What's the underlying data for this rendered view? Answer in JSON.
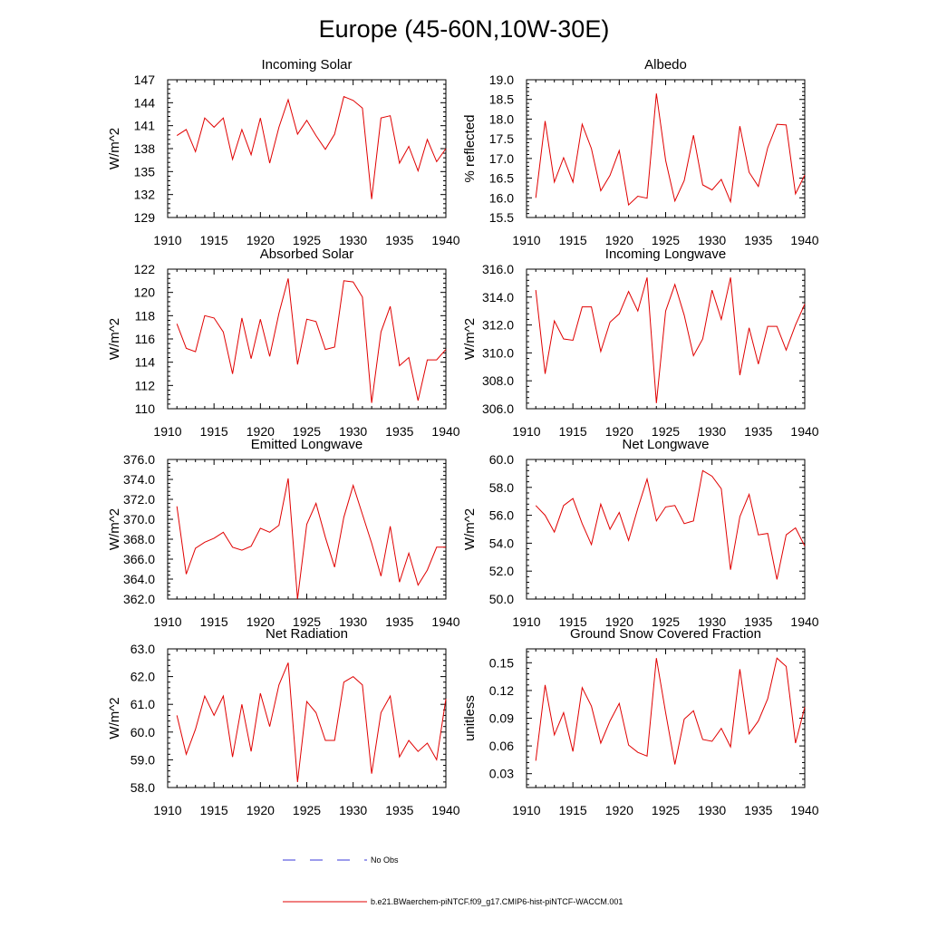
{
  "page": {
    "title": "Europe (45-60N,10W-30E)"
  },
  "legend": {
    "no_obs_label": "No Obs",
    "model_label": "b.e21.BWaerchem-piNTCF.f09_g17.CMIP6-hist-piNTCF-WACCM.001",
    "no_obs_color": "#3a3ad8",
    "model_color": "#e00000"
  },
  "chart_data": [
    {
      "type": "line",
      "title": "Incoming Solar",
      "ylabel": "W/m^2",
      "xlim": [
        1910,
        1940
      ],
      "ylim": [
        129,
        147
      ],
      "x_ticks": [
        "1910",
        "1915",
        "1920",
        "1925",
        "1930",
        "1935",
        "1940"
      ],
      "y_ticks": [
        "129",
        "132",
        "135",
        "138",
        "141",
        "144",
        "147"
      ],
      "x": [
        1911,
        1912,
        1913,
        1914,
        1915,
        1916,
        1917,
        1918,
        1919,
        1920,
        1921,
        1922,
        1923,
        1924,
        1925,
        1926,
        1927,
        1928,
        1929,
        1930,
        1931,
        1932,
        1933,
        1934,
        1935,
        1936,
        1937,
        1938,
        1939,
        1940
      ],
      "series": [
        {
          "color": "#e00000",
          "values": [
            139.7,
            140.5,
            137.6,
            142.0,
            140.8,
            142.0,
            136.6,
            140.5,
            137.2,
            142.0,
            136.1,
            140.8,
            144.4,
            139.9,
            141.7,
            139.7,
            137.9,
            139.9,
            144.8,
            144.3,
            143.3,
            131.4,
            142.0,
            142.3,
            136.1,
            138.3,
            135.1,
            139.2,
            136.3,
            138.0
          ]
        }
      ]
    },
    {
      "type": "line",
      "title": "Albedo",
      "ylabel": "% reflected",
      "xlim": [
        1910,
        1940
      ],
      "ylim": [
        15.5,
        19.0
      ],
      "x_ticks": [
        "1910",
        "1915",
        "1920",
        "1925",
        "1930",
        "1935",
        "1940"
      ],
      "y_ticks": [
        "15.5",
        "16.0",
        "16.5",
        "17.0",
        "17.5",
        "18.0",
        "18.5",
        "19.0"
      ],
      "x": [
        1911,
        1912,
        1913,
        1914,
        1915,
        1916,
        1917,
        1918,
        1919,
        1920,
        1921,
        1922,
        1923,
        1924,
        1925,
        1926,
        1927,
        1928,
        1929,
        1930,
        1931,
        1932,
        1933,
        1934,
        1935,
        1936,
        1937,
        1938,
        1939,
        1940
      ],
      "series": [
        {
          "color": "#e00000",
          "values": [
            16.0,
            17.95,
            16.4,
            17.02,
            16.4,
            17.87,
            17.25,
            16.18,
            16.57,
            17.2,
            15.82,
            16.04,
            15.99,
            18.65,
            16.95,
            15.92,
            16.44,
            17.59,
            16.33,
            16.2,
            16.47,
            15.9,
            17.82,
            16.65,
            16.29,
            17.27,
            17.87,
            17.85,
            16.1,
            16.58
          ]
        }
      ]
    },
    {
      "type": "line",
      "title": "Absorbed Solar",
      "ylabel": "W/m^2",
      "xlim": [
        1910,
        1940
      ],
      "ylim": [
        110,
        122
      ],
      "x_ticks": [
        "1910",
        "1915",
        "1920",
        "1925",
        "1930",
        "1935",
        "1940"
      ],
      "y_ticks": [
        "110",
        "112",
        "114",
        "116",
        "118",
        "120",
        "122"
      ],
      "x": [
        1911,
        1912,
        1913,
        1914,
        1915,
        1916,
        1917,
        1918,
        1919,
        1920,
        1921,
        1922,
        1923,
        1924,
        1925,
        1926,
        1927,
        1928,
        1929,
        1930,
        1931,
        1932,
        1933,
        1934,
        1935,
        1936,
        1937,
        1938,
        1939,
        1940
      ],
      "series": [
        {
          "color": "#e00000",
          "values": [
            117.3,
            115.2,
            114.9,
            118.0,
            117.8,
            116.6,
            113.0,
            117.8,
            114.3,
            117.7,
            114.5,
            118.2,
            121.2,
            113.8,
            117.7,
            117.5,
            115.1,
            115.3,
            121.0,
            120.9,
            119.6,
            110.5,
            116.6,
            118.8,
            113.7,
            114.4,
            110.7,
            114.2,
            114.2,
            115.1
          ]
        }
      ]
    },
    {
      "type": "line",
      "title": "Incoming Longwave",
      "ylabel": "W/m^2",
      "xlim": [
        1910,
        1940
      ],
      "ylim": [
        306.0,
        316.0
      ],
      "x_ticks": [
        "1910",
        "1915",
        "1920",
        "1925",
        "1930",
        "1935",
        "1940"
      ],
      "y_ticks": [
        "306.0",
        "308.0",
        "310.0",
        "312.0",
        "314.0",
        "316.0"
      ],
      "x": [
        1911,
        1912,
        1913,
        1914,
        1915,
        1916,
        1917,
        1918,
        1919,
        1920,
        1921,
        1922,
        1923,
        1924,
        1925,
        1926,
        1927,
        1928,
        1929,
        1930,
        1931,
        1932,
        1933,
        1934,
        1935,
        1936,
        1937,
        1938,
        1939,
        1940
      ],
      "series": [
        {
          "color": "#e00000",
          "values": [
            314.5,
            308.5,
            312.3,
            311.0,
            310.9,
            313.3,
            313.3,
            310.1,
            312.2,
            312.8,
            314.4,
            313.0,
            315.4,
            306.4,
            313.0,
            314.9,
            312.7,
            309.8,
            311.0,
            314.5,
            312.4,
            315.4,
            308.4,
            311.8,
            309.2,
            311.9,
            311.9,
            310.2,
            312.0,
            313.5
          ]
        }
      ]
    },
    {
      "type": "line",
      "title": "Emitted Longwave",
      "ylabel": "W/m^2",
      "xlim": [
        1910,
        1940
      ],
      "ylim": [
        362.0,
        376.0
      ],
      "x_ticks": [
        "1910",
        "1915",
        "1920",
        "1925",
        "1930",
        "1935",
        "1940"
      ],
      "y_ticks": [
        "362.0",
        "364.0",
        "366.0",
        "368.0",
        "370.0",
        "372.0",
        "374.0",
        "376.0"
      ],
      "x": [
        1911,
        1912,
        1913,
        1914,
        1915,
        1916,
        1917,
        1918,
        1919,
        1920,
        1921,
        1922,
        1923,
        1924,
        1925,
        1926,
        1927,
        1928,
        1929,
        1930,
        1931,
        1932,
        1933,
        1934,
        1935,
        1936,
        1937,
        1938,
        1939,
        1940
      ],
      "series": [
        {
          "color": "#e00000",
          "values": [
            371.3,
            364.5,
            367.1,
            367.7,
            368.1,
            368.7,
            367.2,
            366.9,
            367.3,
            369.1,
            368.7,
            369.4,
            374.1,
            362.0,
            369.5,
            371.6,
            368.2,
            365.2,
            370.2,
            373.4,
            370.5,
            367.6,
            364.3,
            369.3,
            363.7,
            366.6,
            363.4,
            364.9,
            367.2,
            367.2
          ]
        }
      ]
    },
    {
      "type": "line",
      "title": "Net Longwave",
      "ylabel": "W/m^2",
      "xlim": [
        1910,
        1940
      ],
      "ylim": [
        50.0,
        60.0
      ],
      "x_ticks": [
        "1910",
        "1915",
        "1920",
        "1925",
        "1930",
        "1935",
        "1940"
      ],
      "y_ticks": [
        "50.0",
        "52.0",
        "54.0",
        "56.0",
        "58.0",
        "60.0"
      ],
      "x": [
        1911,
        1912,
        1913,
        1914,
        1915,
        1916,
        1917,
        1918,
        1919,
        1920,
        1921,
        1922,
        1923,
        1924,
        1925,
        1926,
        1927,
        1928,
        1929,
        1930,
        1931,
        1932,
        1933,
        1934,
        1935,
        1936,
        1937,
        1938,
        1939,
        1940
      ],
      "series": [
        {
          "color": "#e00000",
          "values": [
            56.7,
            56.0,
            54.8,
            56.7,
            57.2,
            55.4,
            53.9,
            56.8,
            55.0,
            56.2,
            54.2,
            56.5,
            58.6,
            55.6,
            56.6,
            56.7,
            55.4,
            55.6,
            59.2,
            58.8,
            57.9,
            52.1,
            55.9,
            57.5,
            54.6,
            54.7,
            51.4,
            54.6,
            55.1,
            53.8
          ]
        }
      ]
    },
    {
      "type": "line",
      "title": "Net Radiation",
      "ylabel": "W/m^2",
      "xlim": [
        1910,
        1940
      ],
      "ylim": [
        58.0,
        63.0
      ],
      "x_ticks": [
        "1910",
        "1915",
        "1920",
        "1925",
        "1930",
        "1935",
        "1940"
      ],
      "y_ticks": [
        "58.0",
        "59.0",
        "60.0",
        "61.0",
        "62.0",
        "63.0"
      ],
      "x": [
        1911,
        1912,
        1913,
        1914,
        1915,
        1916,
        1917,
        1918,
        1919,
        1920,
        1921,
        1922,
        1923,
        1924,
        1925,
        1926,
        1927,
        1928,
        1929,
        1930,
        1931,
        1932,
        1933,
        1934,
        1935,
        1936,
        1937,
        1938,
        1939,
        1940
      ],
      "series": [
        {
          "color": "#e00000",
          "values": [
            60.6,
            59.2,
            60.1,
            61.3,
            60.6,
            61.3,
            59.1,
            61.0,
            59.3,
            61.4,
            60.2,
            61.7,
            62.5,
            58.2,
            61.1,
            60.7,
            59.7,
            59.7,
            61.8,
            62.0,
            61.7,
            58.5,
            60.7,
            61.3,
            59.1,
            59.7,
            59.3,
            59.6,
            59.0,
            61.2
          ]
        }
      ]
    },
    {
      "type": "line",
      "title": "Ground Snow Covered Fraction",
      "ylabel": "unitless",
      "xlim": [
        1910,
        1940
      ],
      "ylim": [
        0.015,
        0.165
      ],
      "x_ticks": [
        "1910",
        "1915",
        "1920",
        "1925",
        "1930",
        "1935",
        "1940"
      ],
      "y_ticks": [
        "0.03",
        "0.06",
        "0.09",
        "0.12",
        "0.15"
      ],
      "x": [
        1911,
        1912,
        1913,
        1914,
        1915,
        1916,
        1917,
        1918,
        1919,
        1920,
        1921,
        1922,
        1923,
        1924,
        1925,
        1926,
        1927,
        1928,
        1929,
        1930,
        1931,
        1932,
        1933,
        1934,
        1935,
        1936,
        1937,
        1938,
        1939,
        1940
      ],
      "series": [
        {
          "color": "#e00000",
          "values": [
            0.044,
            0.126,
            0.072,
            0.096,
            0.054,
            0.123,
            0.103,
            0.063,
            0.087,
            0.106,
            0.061,
            0.053,
            0.049,
            0.155,
            0.096,
            0.04,
            0.089,
            0.098,
            0.067,
            0.065,
            0.079,
            0.059,
            0.143,
            0.073,
            0.087,
            0.111,
            0.155,
            0.146,
            0.063,
            0.102
          ]
        }
      ]
    }
  ]
}
